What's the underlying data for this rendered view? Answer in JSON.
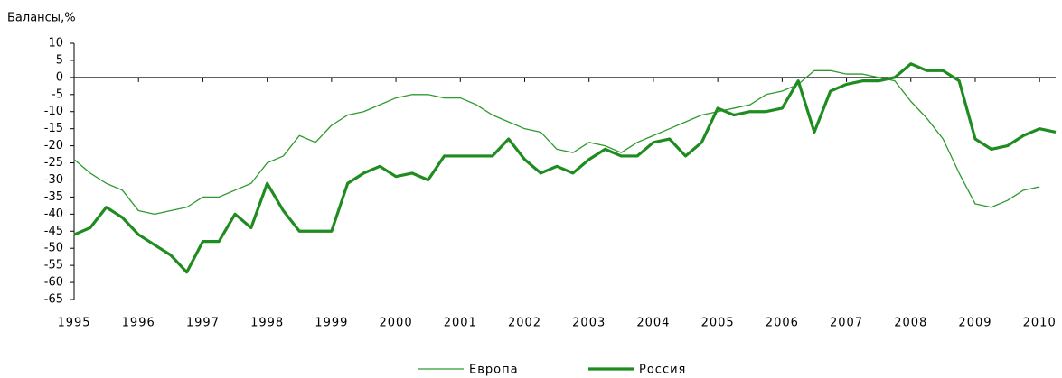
{
  "chart_data": {
    "type": "line",
    "y_label": "Балансы,%",
    "x": [
      1995,
      1995.25,
      1995.5,
      1995.75,
      1996,
      1996.25,
      1996.5,
      1996.75,
      1997,
      1997.25,
      1997.5,
      1997.75,
      1998,
      1998.25,
      1998.5,
      1998.75,
      1999,
      1999.25,
      1999.5,
      1999.75,
      2000,
      2000.25,
      2000.5,
      2000.75,
      2001,
      2001.25,
      2001.5,
      2001.75,
      2002,
      2002.25,
      2002.5,
      2002.75,
      2003,
      2003.25,
      2003.5,
      2003.75,
      2004,
      2004.25,
      2004.5,
      2004.75,
      2005,
      2005.25,
      2005.5,
      2005.75,
      2006,
      2006.25,
      2006.5,
      2006.75,
      2007,
      2007.25,
      2007.5,
      2007.75,
      2008,
      2008.25,
      2008.5,
      2008.75,
      2009,
      2009.25,
      2009.5,
      2009.75,
      2010,
      2010.25
    ],
    "series": [
      {
        "name": "Европа",
        "color": "#2e9a2e",
        "width": 1.3,
        "values": [
          -24,
          -28,
          -31,
          -33,
          -39,
          -40,
          -39,
          -38,
          -35,
          -35,
          -33,
          -31,
          -25,
          -23,
          -17,
          -19,
          -14,
          -11,
          -10,
          -8,
          -6,
          -5,
          -5,
          -6,
          -6,
          -8,
          -11,
          -13,
          -15,
          -16,
          -21,
          -22,
          -19,
          -20,
          -22,
          -19,
          -17,
          -15,
          -13,
          -11,
          -10,
          -9,
          -8,
          -5,
          -4,
          -2,
          2,
          2,
          1,
          1,
          0,
          -1,
          -7,
          -12,
          -18,
          -28,
          -37,
          -38,
          -36,
          -33,
          -32,
          null
        ]
      },
      {
        "name": "Россия",
        "color": "#1f8c1f",
        "width": 3.2,
        "values": [
          -46,
          -44,
          -38,
          -41,
          -46,
          -49,
          -52,
          -57,
          -48,
          -48,
          -40,
          -44,
          -31,
          -39,
          -45,
          -45,
          -45,
          -31,
          -28,
          -26,
          -29,
          -28,
          -30,
          -23,
          -23,
          -23,
          -23,
          -18,
          -24,
          -28,
          -26,
          -28,
          -24,
          -21,
          -23,
          -23,
          -19,
          -18,
          -23,
          -19,
          -9,
          -11,
          -10,
          -10,
          -9,
          -1,
          -16,
          -4,
          -2,
          -1,
          -1,
          0,
          4,
          2,
          2,
          -1,
          -18,
          -21,
          -20,
          -17,
          -15,
          -16
        ]
      }
    ],
    "xlim": [
      1995,
      2010.25
    ],
    "xticks": [
      1995,
      1996,
      1997,
      1998,
      1999,
      2000,
      2001,
      2002,
      2003,
      2004,
      2005,
      2006,
      2007,
      2008,
      2009,
      2010
    ],
    "ylim": [
      -65,
      10
    ],
    "yticks": [
      10,
      5,
      0,
      -5,
      -10,
      -15,
      -20,
      -25,
      -30,
      -35,
      -40,
      -45,
      -50,
      -55,
      -60,
      -65
    ],
    "legend": "bottom"
  }
}
